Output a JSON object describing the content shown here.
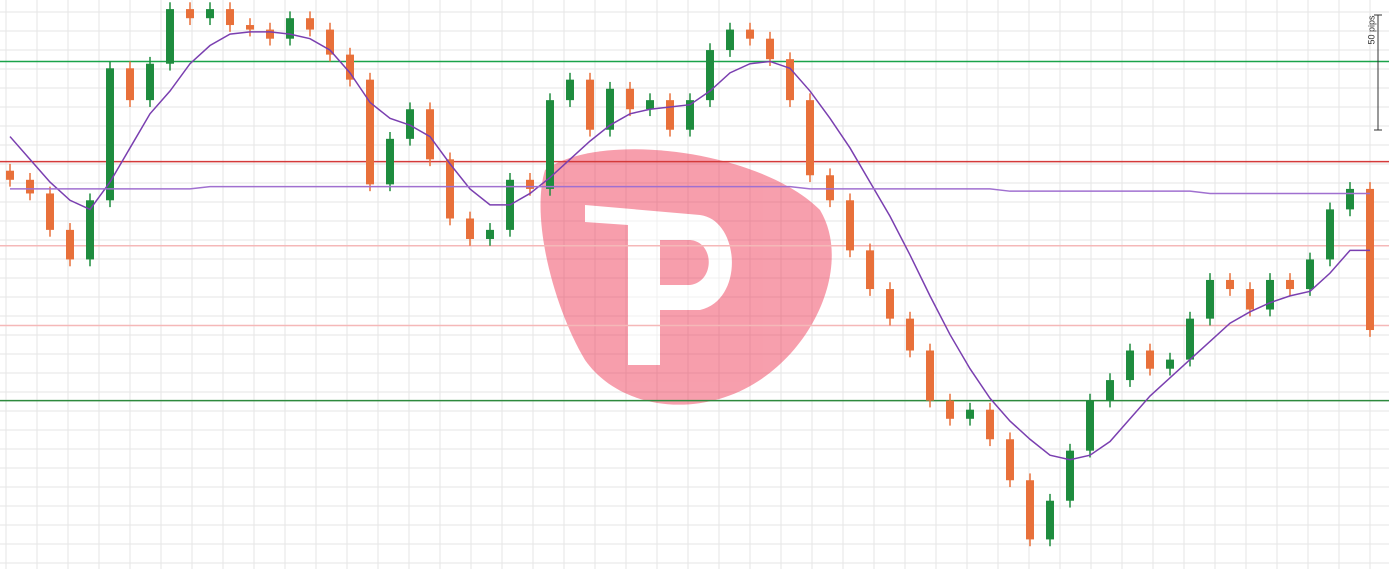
{
  "chart_data": {
    "type": "candlestick",
    "scale_label": "50 pips",
    "ylim": [
      0,
      250
    ],
    "grid": true,
    "up_color": "#1e8c3e",
    "down_color": "#e8703a",
    "open": [
      175,
      171,
      165,
      149,
      136,
      162,
      220,
      206,
      222,
      246,
      242,
      246,
      239,
      237,
      233,
      242,
      237,
      226,
      215,
      169,
      189,
      202,
      180,
      154,
      145,
      149,
      171,
      167,
      206,
      215,
      193,
      211,
      202,
      206,
      193,
      206,
      228,
      237,
      233,
      224,
      206,
      173,
      162,
      140,
      123,
      110,
      96,
      74,
      66,
      70,
      57,
      39,
      13,
      30,
      52,
      74,
      83,
      96,
      88,
      92,
      110,
      127,
      123,
      114,
      127,
      123,
      136,
      158,
      167
    ],
    "high": [
      178,
      174,
      168,
      152,
      165,
      223,
      223,
      225,
      249,
      249,
      249,
      249,
      242,
      240,
      245,
      245,
      240,
      229,
      218,
      192,
      205,
      205,
      183,
      157,
      152,
      174,
      174,
      209,
      218,
      218,
      214,
      214,
      209,
      209,
      209,
      231,
      240,
      240,
      236,
      227,
      209,
      176,
      165,
      143,
      126,
      113,
      99,
      77,
      73,
      73,
      60,
      42,
      33,
      55,
      77,
      86,
      99,
      99,
      95,
      113,
      130,
      130,
      126,
      130,
      130,
      139,
      161,
      170,
      170
    ],
    "low": [
      168,
      162,
      146,
      133,
      133,
      159,
      203,
      203,
      219,
      239,
      239,
      236,
      234,
      230,
      230,
      234,
      223,
      212,
      166,
      166,
      186,
      177,
      151,
      142,
      142,
      146,
      164,
      164,
      203,
      190,
      190,
      199,
      199,
      190,
      190,
      203,
      225,
      230,
      221,
      203,
      170,
      159,
      137,
      120,
      107,
      93,
      71,
      63,
      63,
      54,
      36,
      10,
      10,
      27,
      49,
      71,
      80,
      85,
      85,
      89,
      107,
      120,
      111,
      111,
      120,
      120,
      133,
      155,
      102
    ],
    "close": [
      171,
      165,
      149,
      136,
      162,
      220,
      206,
      222,
      246,
      242,
      246,
      239,
      237,
      233,
      242,
      237,
      226,
      215,
      169,
      189,
      202,
      180,
      154,
      145,
      149,
      171,
      167,
      206,
      215,
      193,
      211,
      202,
      206,
      193,
      206,
      228,
      237,
      233,
      224,
      206,
      173,
      162,
      140,
      123,
      110,
      96,
      74,
      66,
      70,
      57,
      39,
      13,
      30,
      52,
      74,
      83,
      96,
      88,
      92,
      110,
      127,
      123,
      114,
      127,
      123,
      136,
      158,
      167,
      105
    ],
    "lines": [
      {
        "color": "#7a3fb0",
        "values": [
          190,
          180,
          170,
          162,
          158,
          170,
          185,
          200,
          210,
          222,
          230,
          235,
          236,
          236,
          235,
          233,
          228,
          218,
          205,
          198,
          195,
          190,
          178,
          167,
          160,
          160,
          165,
          172,
          180,
          188,
          195,
          200,
          202,
          203,
          204,
          210,
          218,
          222,
          223,
          220,
          210,
          198,
          185,
          170,
          155,
          138,
          120,
          103,
          88,
          75,
          65,
          57,
          50,
          48,
          50,
          56,
          66,
          76,
          84,
          92,
          100,
          108,
          113,
          117,
          120,
          122,
          130,
          140,
          140
        ]
      },
      {
        "color": "#a070d0",
        "values": [
          167,
          167,
          167,
          167,
          167,
          167,
          167,
          167,
          167,
          167,
          168,
          168,
          168,
          168,
          168,
          168,
          168,
          168,
          168,
          168,
          168,
          168,
          168,
          168,
          168,
          168,
          168,
          168,
          168,
          168,
          168,
          168,
          168,
          168,
          168,
          168,
          168,
          168,
          168,
          168,
          167,
          167,
          167,
          167,
          167,
          167,
          167,
          167,
          167,
          167,
          166,
          166,
          166,
          166,
          166,
          166,
          166,
          166,
          166,
          166,
          165,
          165,
          165,
          165,
          165,
          165,
          165,
          165,
          165
        ]
      }
    ],
    "levels": [
      {
        "value": 223,
        "color": "#1aa34a"
      },
      {
        "value": 179,
        "color": "#d43a3a"
      },
      {
        "value": 142,
        "color": "#f5b8b8"
      },
      {
        "value": 107,
        "color": "#f5b8b8"
      },
      {
        "value": 74,
        "color": "#2e8a3e"
      }
    ]
  }
}
